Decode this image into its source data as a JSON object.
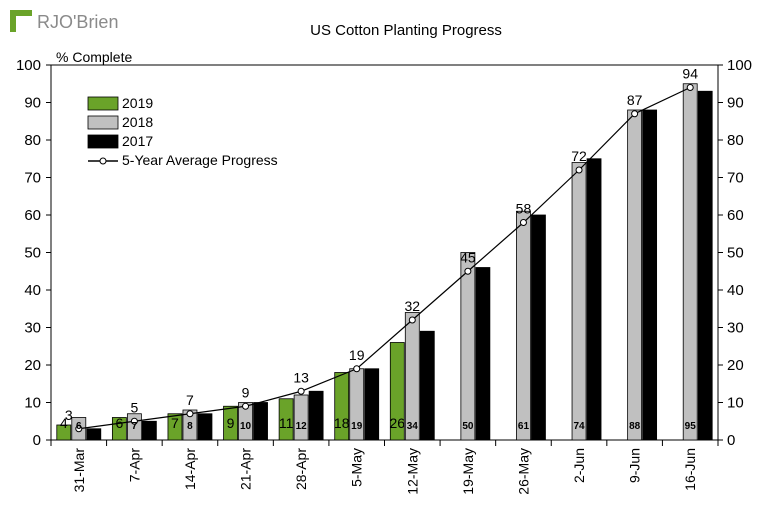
{
  "logo": {
    "text": "RJO'Brien",
    "color": "#6aa329"
  },
  "chart_data": {
    "type": "bar",
    "title": "US Cotton Planting Progress",
    "ylabel": "% Complete",
    "xlabel": "",
    "ylim": [
      0,
      100
    ],
    "yticks": [
      0,
      10,
      20,
      30,
      40,
      50,
      60,
      70,
      80,
      90,
      100
    ],
    "grid": false,
    "legend_position": "top-left",
    "categories": [
      "31-Mar",
      "7-Apr",
      "14-Apr",
      "21-Apr",
      "28-Apr",
      "5-May",
      "12-May",
      "19-May",
      "26-May",
      "2-Jun",
      "9-Jun",
      "16-Jun"
    ],
    "series": [
      {
        "name": "2019",
        "type": "bar",
        "color": "#6aa329",
        "values": [
          4,
          6,
          7,
          9,
          11,
          18,
          26,
          null,
          null,
          null,
          null,
          null
        ],
        "labels": [
          "4",
          "6",
          "7",
          "9",
          "11",
          "18",
          "26",
          "",
          "",
          "",
          "",
          ""
        ]
      },
      {
        "name": "2018",
        "type": "bar",
        "color": "#c0c0c0",
        "values": [
          6,
          7,
          8,
          10,
          12,
          19,
          34,
          50,
          61,
          74,
          88,
          95
        ],
        "labels": [
          "6",
          "7",
          "8",
          "10",
          "12",
          "19",
          "34",
          "50",
          "61",
          "74",
          "88",
          "95"
        ]
      },
      {
        "name": "2017",
        "type": "bar",
        "color": "#000000",
        "values": [
          3,
          5,
          7,
          10,
          13,
          19,
          29,
          46,
          60,
          75,
          88,
          93
        ],
        "labels": [
          "",
          "",
          "",
          "",
          "",
          "",
          "",
          "",
          "",
          "",
          "",
          ""
        ]
      },
      {
        "name": "5-Year Average Progress",
        "type": "line",
        "color": "#000000",
        "values": [
          3,
          5,
          7,
          9,
          13,
          19,
          32,
          45,
          58,
          72,
          87,
          94
        ],
        "labels": [
          "3",
          "5",
          "7",
          "9",
          "13",
          "19",
          "32",
          "45",
          "58",
          "72",
          "87",
          "94"
        ]
      }
    ]
  }
}
